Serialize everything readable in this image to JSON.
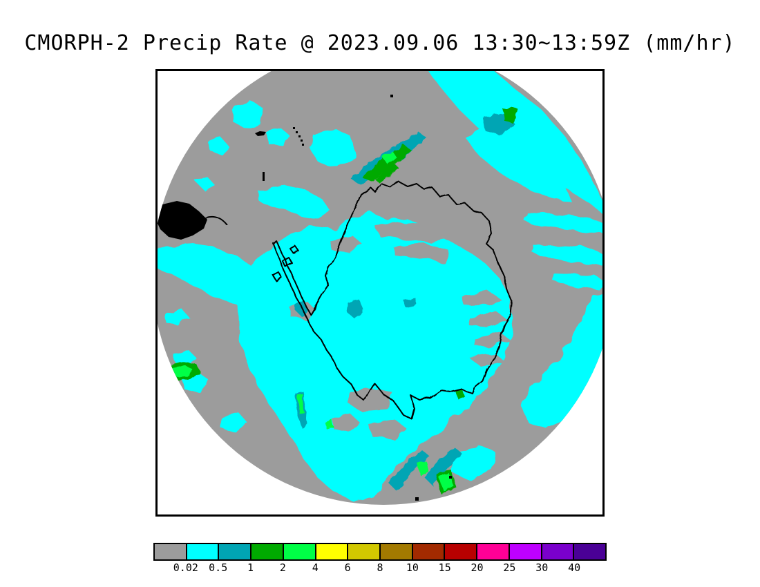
{
  "title": "CMORPH-2 Precip Rate @ 2023.09.06 13:30~13:59Z (mm/hr)",
  "colors": {
    "background": "#ffffff",
    "title_text": "#000000",
    "frame": "#000000",
    "coastline": "#000000",
    "no_precip_gray": "#9c9c9c",
    "bin_cyan": "#00ffff",
    "bin_teal": "#00a5b4",
    "bin_green": "#00aa00",
    "bin_bright_green": "#00ff46",
    "bin_yellow": "#ffff00",
    "bin_gold": "#d2c800",
    "bin_dark_gold": "#a37a00",
    "bin_brick": "#a22a00",
    "bin_dark_red": "#b80000",
    "bin_pink": "#ff0096",
    "bin_violet": "#be00ff",
    "bin_purple": "#7a00cc",
    "bin_indigo": "#4a0096"
  },
  "chart_data": {
    "type": "heatmap",
    "title": "CMORPH-2 Precip Rate @ 2023.09.06 13:30~13:59Z (mm/hr)",
    "product": "CMORPH-2",
    "variable": "Precip Rate",
    "date": "2023.09.06",
    "time_window": "13:30~13:59Z",
    "units": "mm/hr",
    "projection": "south polar stereographic (Antarctica centered)",
    "legend_position": "bottom",
    "tick_labels": [
      "0.02",
      "0.5",
      "1",
      "2",
      "4",
      "6",
      "8",
      "10",
      "15",
      "20",
      "25",
      "30",
      "40"
    ],
    "colorbar_bins": [
      {
        "color": "#9c9c9c",
        "range": "< 0.02"
      },
      {
        "color": "#00ffff",
        "range": "0.02 - 0.5"
      },
      {
        "color": "#00a5b4",
        "range": "0.5 - 1"
      },
      {
        "color": "#00aa00",
        "range": "1 - 2"
      },
      {
        "color": "#00ff46",
        "range": "2 - 4"
      },
      {
        "color": "#ffff00",
        "range": "4 - 6"
      },
      {
        "color": "#d2c800",
        "range": "6 - 8"
      },
      {
        "color": "#a37a00",
        "range": "8 - 10"
      },
      {
        "color": "#a22a00",
        "range": "10 - 15"
      },
      {
        "color": "#b80000",
        "range": "15 - 20"
      },
      {
        "color": "#ff0096",
        "range": "20 - 25"
      },
      {
        "color": "#be00ff",
        "range": "25 - 30"
      },
      {
        "color": "#7a00cc",
        "range": "30 - 40"
      },
      {
        "color": "#4a0096",
        "range": "> 40"
      }
    ],
    "map_features": [
      "Antarctica coastline",
      "Antarctic Peninsula with offshore islands",
      "Tip of South America at upper-left rim",
      "Gray = below 0.02 mm/hr, cyan = light precipitation over most of disk",
      "Teal/green heavier precipitation streaks top-center, left rim, bottom-center"
    ]
  }
}
